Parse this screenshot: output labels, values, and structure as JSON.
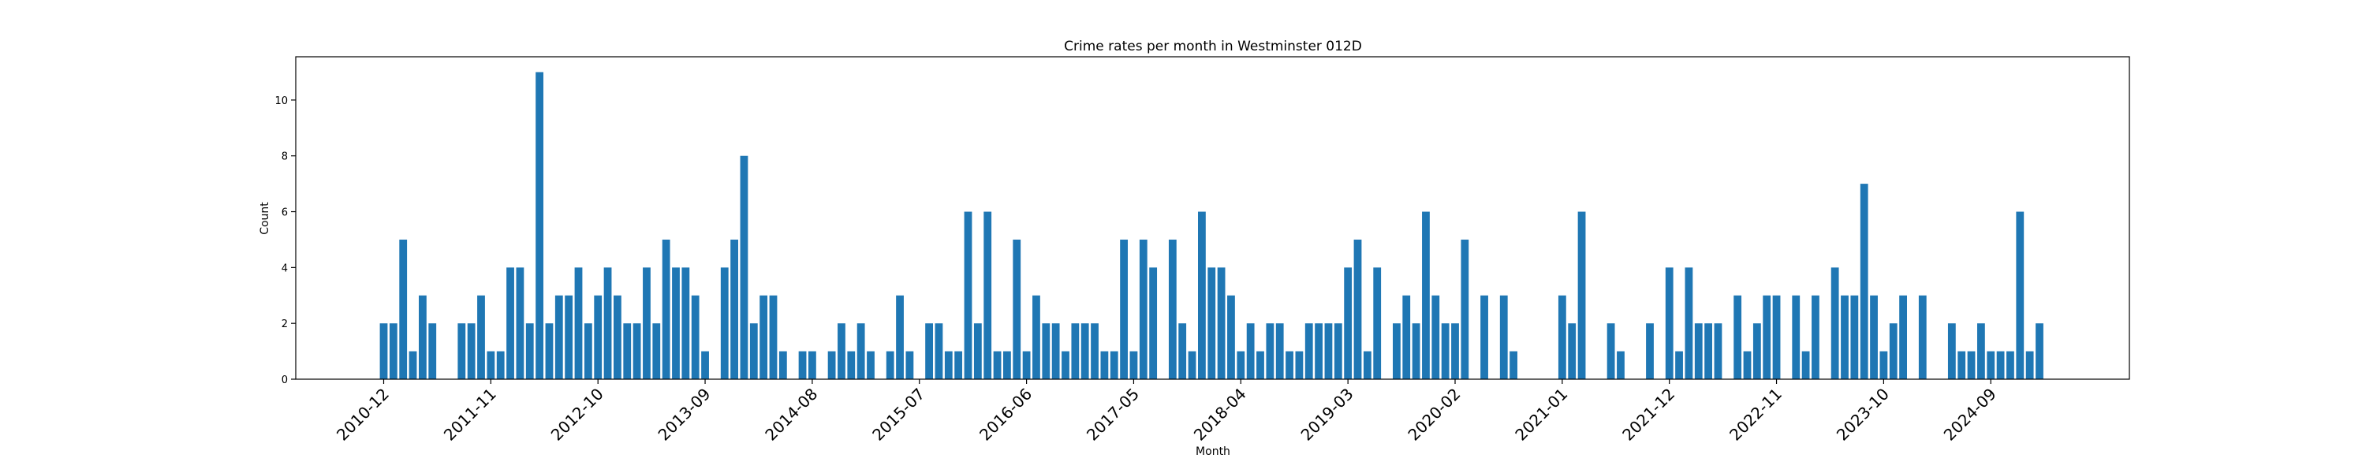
{
  "chart_data": {
    "type": "bar",
    "title": "Crime rates per month in Westminster 012D",
    "xlabel": "Month",
    "ylabel": "Count",
    "ylim": [
      0,
      11.55
    ],
    "yticks": [
      0,
      2,
      4,
      6,
      8,
      10
    ],
    "bar_color": "#1f77b4",
    "x_tick_labels": [
      "2010-12",
      "2011-11",
      "2012-10",
      "2013-09",
      "2014-08",
      "2015-07",
      "2016-06",
      "2017-05",
      "2018-04",
      "2019-03",
      "2020-02",
      "2021-01",
      "2021-12",
      "2022-11",
      "2023-10",
      "2024-09"
    ],
    "start_month": "2010-12",
    "values": [
      2,
      2,
      5,
      1,
      3,
      2,
      0,
      0,
      2,
      2,
      3,
      1,
      1,
      4,
      4,
      2,
      11,
      2,
      3,
      3,
      4,
      2,
      3,
      4,
      3,
      2,
      2,
      4,
      2,
      5,
      4,
      4,
      3,
      1,
      0,
      4,
      5,
      8,
      2,
      3,
      3,
      1,
      0,
      1,
      1,
      0,
      1,
      2,
      1,
      2,
      1,
      0,
      1,
      3,
      1,
      0,
      2,
      2,
      1,
      1,
      6,
      2,
      6,
      1,
      1,
      5,
      1,
      3,
      2,
      2,
      1,
      2,
      2,
      2,
      1,
      1,
      5,
      1,
      5,
      4,
      0,
      5,
      2,
      1,
      6,
      4,
      4,
      3,
      1,
      2,
      1,
      2,
      2,
      1,
      1,
      2,
      2,
      2,
      2,
      4,
      5,
      1,
      4,
      0,
      2,
      3,
      2,
      6,
      3,
      2,
      2,
      5,
      0,
      3,
      0,
      3,
      1,
      0,
      0,
      0,
      0,
      3,
      2,
      6,
      0,
      0,
      2,
      1,
      0,
      0,
      2,
      0,
      4,
      1,
      4,
      2,
      2,
      2,
      0,
      3,
      1,
      2,
      3,
      3,
      0,
      3,
      1,
      3,
      0,
      4,
      3,
      3,
      7,
      3,
      1,
      2,
      3,
      0,
      3,
      0,
      0,
      2,
      1,
      1,
      2,
      1,
      1,
      1,
      6,
      1,
      2
    ]
  }
}
